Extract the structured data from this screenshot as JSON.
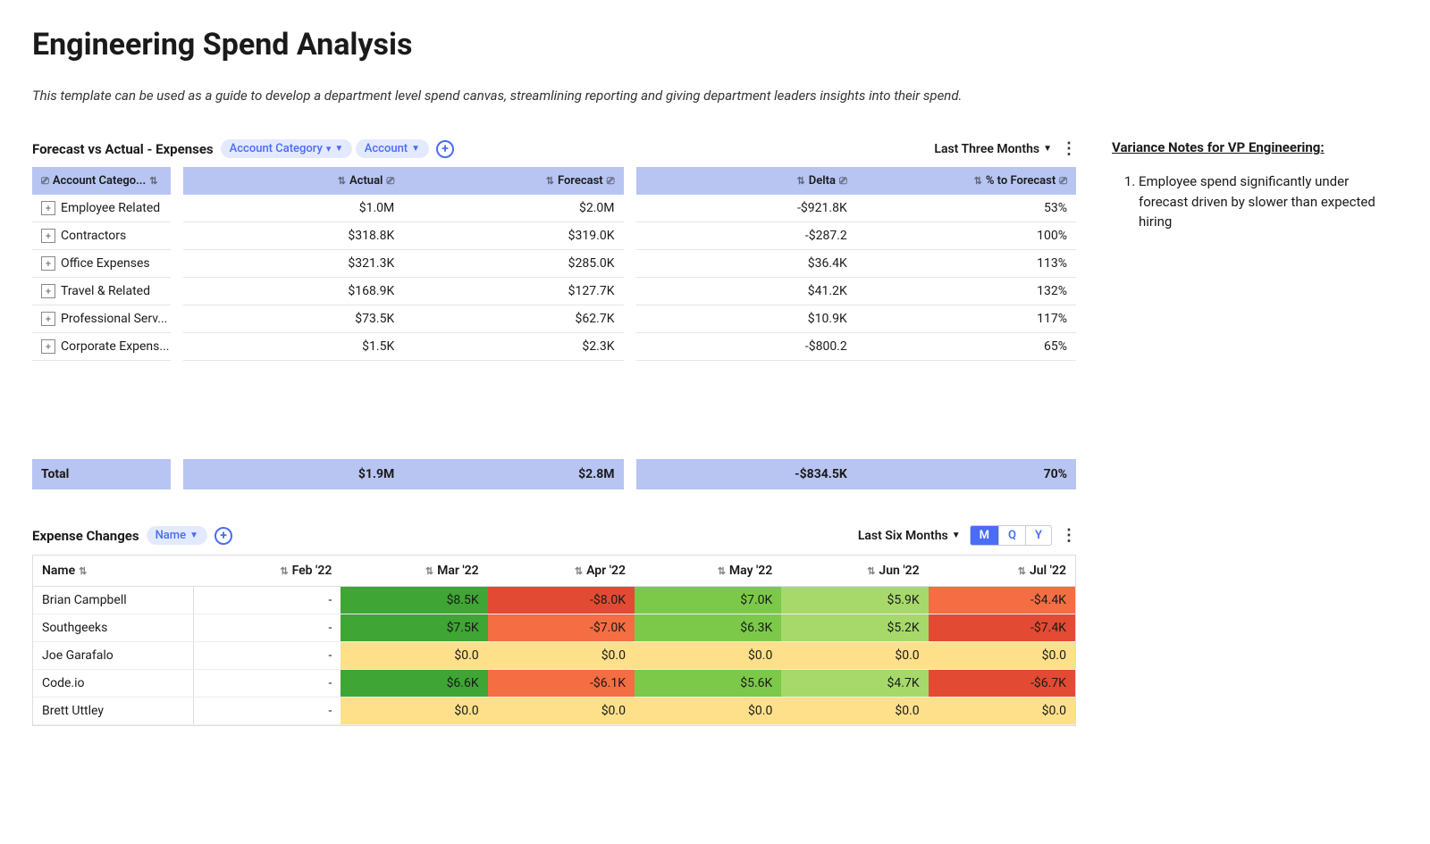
{
  "page": {
    "title": "Engineering Spend Analysis",
    "subtitle": "This template can be used as a guide to develop a department level spend canvas, streamlining reporting and giving department leaders insights into their spend."
  },
  "forecast_section": {
    "title": "Forecast vs Actual - Expenses",
    "pills": [
      "Account Category",
      "Account"
    ],
    "time_filter": "Last Three Months",
    "columns_g1": [
      "Account Catego..."
    ],
    "columns_g2": [
      "Actual",
      "Forecast"
    ],
    "columns_g3": [
      "Delta",
      "% to Forecast"
    ],
    "rows": [
      {
        "category": "Employee Related",
        "actual": "$1.0M",
        "forecast": "$2.0M",
        "delta": "-$921.8K",
        "pct": "53%"
      },
      {
        "category": "Contractors",
        "actual": "$318.8K",
        "forecast": "$319.0K",
        "delta": "-$287.2",
        "pct": "100%"
      },
      {
        "category": "Office Expenses",
        "actual": "$321.3K",
        "forecast": "$285.0K",
        "delta": "$36.4K",
        "pct": "113%"
      },
      {
        "category": "Travel & Related",
        "actual": "$168.9K",
        "forecast": "$127.7K",
        "delta": "$41.2K",
        "pct": "132%"
      },
      {
        "category": "Professional Serv...",
        "actual": "$73.5K",
        "forecast": "$62.7K",
        "delta": "$10.9K",
        "pct": "117%"
      },
      {
        "category": "Corporate Expens...",
        "actual": "$1.5K",
        "forecast": "$2.3K",
        "delta": "-$800.2",
        "pct": "65%"
      }
    ],
    "total": {
      "label": "Total",
      "actual": "$1.9M",
      "forecast": "$2.8M",
      "delta": "-$834.5K",
      "pct": "70%"
    }
  },
  "notes": {
    "title": "Variance Notes for VP Engineering:",
    "items": [
      "Employee spend significantly under forecast driven by slower than expected hiring"
    ]
  },
  "changes_section": {
    "title": "Expense Changes",
    "pill": "Name",
    "time_filter": "Last Six Months",
    "segments": [
      "M",
      "Q",
      "Y"
    ],
    "active_segment": "M",
    "month_headers": [
      "Name",
      "Feb '22",
      "Mar '22",
      "Apr '22",
      "May '22",
      "Jun '22",
      "Jul '22"
    ],
    "heatmap_colors": {
      "blank": "#ffffff",
      "green_dark": "#3fa535",
      "green_mid": "#7cc94a",
      "green_light": "#a6d96a",
      "yellow": "#fee08b",
      "orange": "#f46d43",
      "red": "#e34a33"
    },
    "rows": [
      {
        "name": "Brian Campbell",
        "cells": [
          {
            "val": "-",
            "c": "blank"
          },
          {
            "val": "$8.5K",
            "c": "green_dark"
          },
          {
            "val": "-$8.0K",
            "c": "red"
          },
          {
            "val": "$7.0K",
            "c": "green_mid"
          },
          {
            "val": "$5.9K",
            "c": "green_light"
          },
          {
            "val": "-$4.4K",
            "c": "orange"
          }
        ]
      },
      {
        "name": "Southgeeks",
        "cells": [
          {
            "val": "-",
            "c": "blank"
          },
          {
            "val": "$7.5K",
            "c": "green_dark"
          },
          {
            "val": "-$7.0K",
            "c": "orange"
          },
          {
            "val": "$6.3K",
            "c": "green_mid"
          },
          {
            "val": "$5.2K",
            "c": "green_light"
          },
          {
            "val": "-$7.4K",
            "c": "red"
          }
        ]
      },
      {
        "name": "Joe Garafalo",
        "cells": [
          {
            "val": "-",
            "c": "blank"
          },
          {
            "val": "$0.0",
            "c": "yellow"
          },
          {
            "val": "$0.0",
            "c": "yellow"
          },
          {
            "val": "$0.0",
            "c": "yellow"
          },
          {
            "val": "$0.0",
            "c": "yellow"
          },
          {
            "val": "$0.0",
            "c": "yellow"
          }
        ]
      },
      {
        "name": "Code.io",
        "cells": [
          {
            "val": "-",
            "c": "blank"
          },
          {
            "val": "$6.6K",
            "c": "green_dark"
          },
          {
            "val": "-$6.1K",
            "c": "orange"
          },
          {
            "val": "$5.6K",
            "c": "green_mid"
          },
          {
            "val": "$4.7K",
            "c": "green_light"
          },
          {
            "val": "-$6.7K",
            "c": "red"
          }
        ]
      },
      {
        "name": "Brett Uttley",
        "cells": [
          {
            "val": "-",
            "c": "blank"
          },
          {
            "val": "$0.0",
            "c": "yellow"
          },
          {
            "val": "$0.0",
            "c": "yellow"
          },
          {
            "val": "$0.0",
            "c": "yellow"
          },
          {
            "val": "$0.0",
            "c": "yellow"
          },
          {
            "val": "$0.0",
            "c": "yellow"
          }
        ]
      }
    ]
  }
}
